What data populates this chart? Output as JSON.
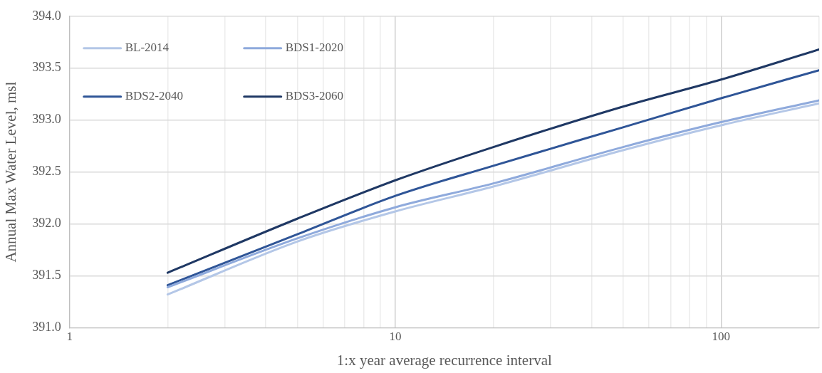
{
  "chart_data": {
    "type": "line",
    "xlabel": "1:x year average recurrence interval",
    "ylabel": "Annual Max Water Level, msl",
    "x": [
      2,
      5,
      10,
      20,
      50,
      100,
      200
    ],
    "series": [
      {
        "name": "BL-2014",
        "color": "#b4c7e7",
        "values": [
          391.32,
          391.83,
          392.12,
          392.36,
          392.71,
          392.95,
          393.16
        ]
      },
      {
        "name": "BDS1-2020",
        "color": "#8faadc",
        "values": [
          391.39,
          391.86,
          392.16,
          392.39,
          392.74,
          392.98,
          393.19
        ]
      },
      {
        "name": "BDS2-2040",
        "color": "#2f5597",
        "values": [
          391.41,
          391.9,
          392.27,
          392.56,
          392.93,
          393.21,
          393.48
        ]
      },
      {
        "name": "BDS3-2060",
        "color": "#1f3864",
        "values": [
          391.53,
          392.05,
          392.42,
          392.74,
          393.13,
          393.39,
          393.68
        ]
      }
    ],
    "log": "x",
    "xlim": [
      1,
      200
    ],
    "xticks": [
      1,
      {
        "value": 2,
        "label": null
      },
      {
        "value": 3,
        "label": null
      },
      {
        "value": 4,
        "label": null
      },
      {
        "value": 5,
        "label": null
      },
      {
        "value": 6,
        "label": null
      },
      {
        "value": 7,
        "label": null
      },
      {
        "value": 8,
        "label": null
      },
      {
        "value": 9,
        "label": null
      },
      10,
      {
        "value": 20,
        "label": null
      },
      {
        "value": 30,
        "label": null
      },
      {
        "value": 40,
        "label": null
      },
      {
        "value": 50,
        "label": null
      },
      {
        "value": 60,
        "label": null
      },
      {
        "value": 70,
        "label": null
      },
      {
        "value": 80,
        "label": null
      },
      {
        "value": 90,
        "label": null
      },
      100,
      {
        "value": 200,
        "label": null
      }
    ],
    "ylim": [
      391,
      394
    ],
    "yticks": [
      {
        "value": 391,
        "label": "391.0"
      },
      {
        "value": 391.5,
        "label": "391.5"
      },
      {
        "value": 392,
        "label": "392.0"
      },
      {
        "value": 392.5,
        "label": "392.5"
      },
      {
        "value": 393,
        "label": "393.0"
      },
      {
        "value": 393.5,
        "label": "393.5"
      },
      {
        "value": 394,
        "label": "394.0"
      }
    ],
    "grid": true,
    "legend": "top left",
    "marker": "none",
    "line_style": "solid"
  }
}
